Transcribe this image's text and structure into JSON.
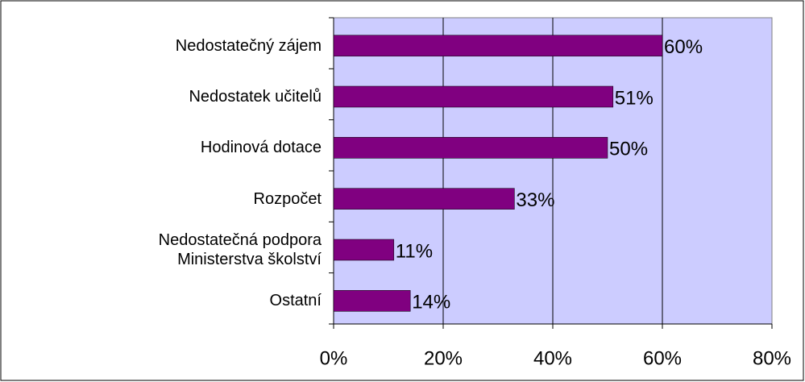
{
  "chart_data": {
    "type": "bar",
    "orientation": "horizontal",
    "categories": [
      "Nedostatečný zájem",
      "Nedostatek učitelů",
      "Hodinová dotace",
      "Rozpočet",
      "Nedostatečná podpora\nMinisterstva školství",
      "Ostatní"
    ],
    "values": [
      60,
      51,
      50,
      33,
      11,
      14
    ],
    "value_labels": [
      "60%",
      "51%",
      "50%",
      "33%",
      "11%",
      "14%"
    ],
    "color": "#800080",
    "xlim": [
      0,
      80
    ],
    "xticks": [
      {
        "value": 0,
        "label": "0%"
      },
      {
        "value": 20,
        "label": "20%"
      },
      {
        "value": 40,
        "label": "40%"
      },
      {
        "value": 60,
        "label": "60%"
      },
      {
        "value": 80,
        "label": "80%"
      }
    ],
    "grid": true
  }
}
